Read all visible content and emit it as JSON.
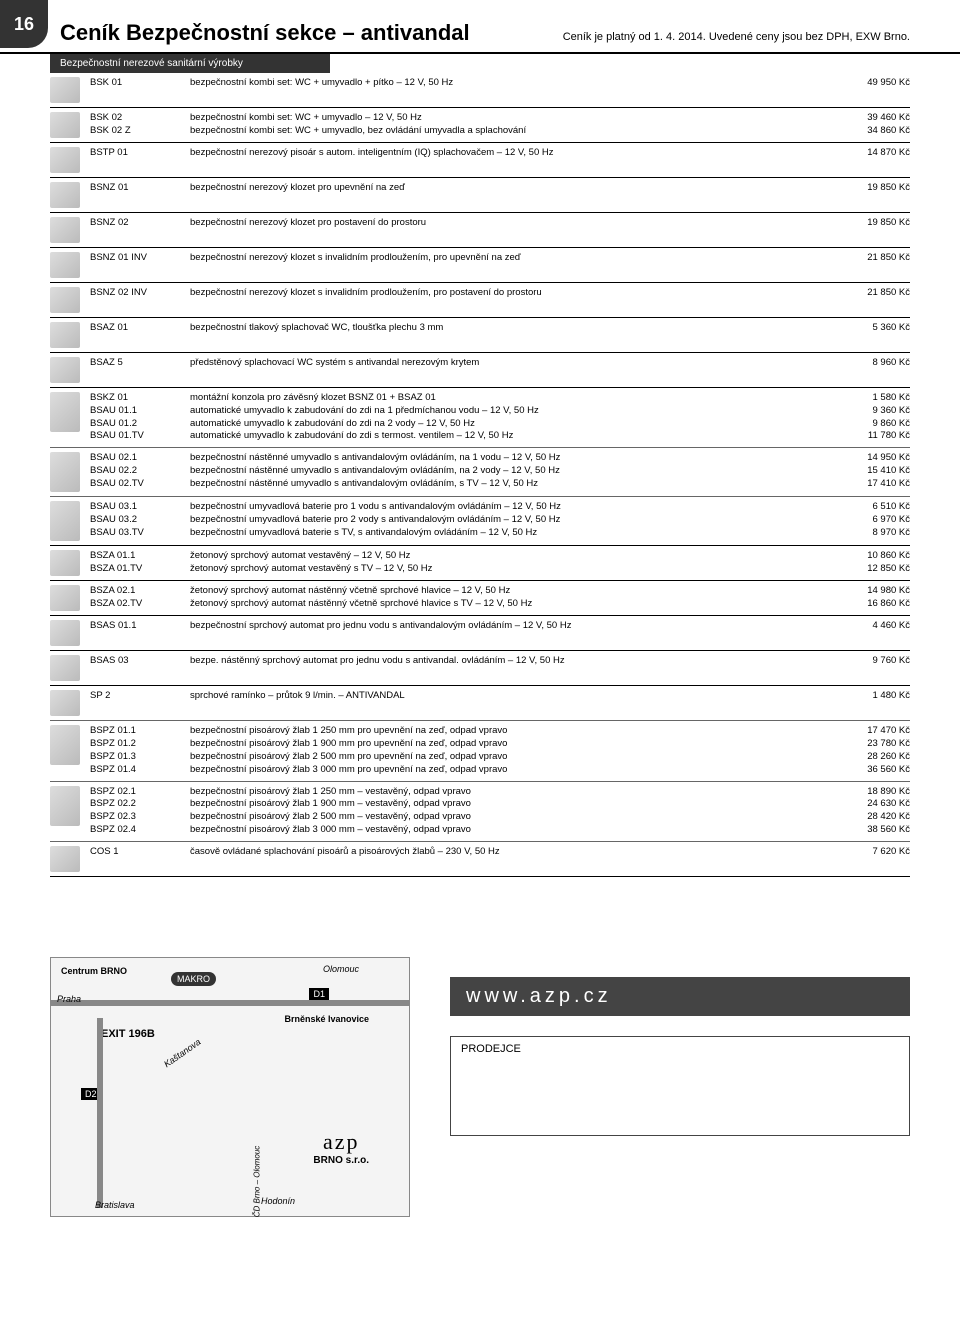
{
  "page_number": "16",
  "title": "Ceník Bezpečnostní sekce – antivandal",
  "subtitle": "Ceník je platný od 1. 4. 2014. Uvedené ceny jsou bez DPH, EXW Brno.",
  "band": "Bezpečnostní nerezové sanitární výrobky",
  "colors": {
    "header_bg": "#333333",
    "text": "#000000",
    "rule": "#000000"
  },
  "rows": [
    {
      "codes": [
        "BSK 01"
      ],
      "descs": [
        "bezpečnostní kombi set: WC + umyvadlo + pítko – 12 V, 50 Hz"
      ],
      "prices": [
        "49 950 Kč"
      ]
    },
    {
      "codes": [
        "BSK 02",
        "BSK 02 Z"
      ],
      "descs": [
        "bezpečnostní kombi set: WC + umyvadlo – 12 V, 50 Hz",
        "bezpečnostní kombi set: WC + umyvadlo, bez ovládání umyvadla a splachování"
      ],
      "prices": [
        "39 460 Kč",
        "34 860 Kč"
      ]
    },
    {
      "codes": [
        "BSTP 01"
      ],
      "descs": [
        "bezpečnostní nerezový pisoár s autom. inteligentním (IQ) splachovačem – 12 V, 50 Hz"
      ],
      "prices": [
        "14 870 Kč"
      ]
    },
    {
      "codes": [
        "BSNZ 01"
      ],
      "descs": [
        "bezpečnostní nerezový klozet pro upevnění na zeď"
      ],
      "prices": [
        "19 850 Kč"
      ]
    },
    {
      "codes": [
        "BSNZ 02"
      ],
      "descs": [
        "bezpečnostní nerezový klozet pro postavení do prostoru"
      ],
      "prices": [
        "19 850 Kč"
      ]
    },
    {
      "codes": [
        "BSNZ 01 INV"
      ],
      "descs": [
        "bezpečnostní nerezový klozet s invalidním prodloužením, pro upevnění na zeď"
      ],
      "prices": [
        "21 850 Kč"
      ]
    },
    {
      "codes": [
        "BSNZ 02 INV"
      ],
      "descs": [
        "bezpečnostní nerezový klozet s invalidním prodloužením, pro postavení do prostoru"
      ],
      "prices": [
        "21 850 Kč"
      ]
    },
    {
      "codes": [
        "BSAZ 01"
      ],
      "descs": [
        "bezpečnostní tlakový splachovač WC, tloušťka plechu 3 mm"
      ],
      "prices": [
        "5 360 Kč"
      ]
    },
    {
      "codes": [
        "BSAZ 5"
      ],
      "descs": [
        "předstěnový splachovací WC systém s antivandal nerezovým krytem"
      ],
      "prices": [
        "8 960 Kč"
      ]
    },
    {
      "codes": [
        "BSKZ 01",
        "BSAU 01.1",
        "BSAU 01.2",
        "BSAU 01.TV"
      ],
      "descs": [
        "montážní konzola pro závěsný klozet BSNZ 01 + BSAZ 01",
        "automatické umyvadlo k zabudování do zdi na 1 předmíchanou vodu – 12 V, 50 Hz",
        "automatické umyvadlo k zabudování do zdi na 2 vody – 12 V, 50 Hz",
        "automatické umyvadlo k zabudování do zdi s termost. ventilem – 12 V, 50 Hz"
      ],
      "prices": [
        "1 580 Kč",
        "9 360 Kč",
        "9 860 Kč",
        "11 780 Kč"
      ],
      "thin": true
    },
    {
      "codes": [
        "BSAU 02.1",
        "BSAU 02.2",
        "BSAU 02.TV"
      ],
      "descs": [
        "bezpečnostní nástěnné umyvadlo s antivandalovým ovládáním, na 1 vodu – 12 V, 50 Hz",
        "bezpečnostní nástěnné umyvadlo s antivandalovým ovládáním, na 2 vody – 12 V, 50 Hz",
        "bezpečnostní nástěnné umyvadlo s antivandalovým ovládáním, s TV – 12 V, 50 Hz"
      ],
      "prices": [
        "14 950 Kč",
        "15 410 Kč",
        "17 410 Kč"
      ],
      "thin": true
    },
    {
      "codes": [
        "BSAU 03.1",
        "BSAU 03.2",
        "BSAU 03.TV"
      ],
      "descs": [
        "bezpečnostní umyvadlová baterie pro 1 vodu s antivandalovým ovládáním – 12 V, 50 Hz",
        "bezpečnostní umyvadlová baterie pro 2 vody s antivandalovým ovládáním – 12 V, 50 Hz",
        "bezpečnostní umyvadlová baterie s TV, s antivandalovým ovládáním – 12 V, 50 Hz"
      ],
      "prices": [
        "6 510 Kč",
        "6 970 Kč",
        "8 970 Kč"
      ]
    },
    {
      "codes": [
        "BSZA 01.1",
        "BSZA 01.TV"
      ],
      "descs": [
        "žetonový sprchový automat vestavěný – 12 V, 50 Hz",
        "žetonový sprchový automat vestavěný s TV – 12 V, 50 Hz"
      ],
      "prices": [
        "10 860 Kč",
        "12 850 Kč"
      ]
    },
    {
      "codes": [
        "BSZA 02.1",
        "BSZA 02.TV"
      ],
      "descs": [
        "žetonový sprchový automat nástěnný včetně sprchové hlavice – 12 V, 50 Hz",
        "žetonový sprchový automat nástěnný včetně sprchové hlavice s TV – 12 V, 50 Hz"
      ],
      "prices": [
        "14 980 Kč",
        "16 860 Kč"
      ]
    },
    {
      "codes": [
        "BSAS 01.1"
      ],
      "descs": [
        "bezpečnostní sprchový automat pro jednu vodu s antivandalovým ovládáním – 12 V, 50 Hz"
      ],
      "prices": [
        "4 460 Kč"
      ]
    },
    {
      "codes": [
        "BSAS 03"
      ],
      "descs": [
        "bezpe. nástěnný sprchový automat pro jednu vodu s antivandal. ovládáním – 12 V, 50 Hz"
      ],
      "prices": [
        "9 760 Kč"
      ]
    },
    {
      "codes": [
        "SP 2"
      ],
      "descs": [
        "sprchové ramínko – průtok 9 l/min. – ANTIVANDAL"
      ],
      "prices": [
        "1 480 Kč"
      ],
      "thin": true
    },
    {
      "codes": [
        "BSPZ 01.1",
        "BSPZ 01.2",
        "BSPZ 01.3",
        "BSPZ 01.4"
      ],
      "descs": [
        "bezpečnostní pisoárový žlab 1 250 mm pro upevnění na zeď, odpad vpravo",
        "bezpečnostní pisoárový žlab 1 900 mm pro upevnění na zeď, odpad vpravo",
        "bezpečnostní pisoárový žlab 2 500 mm pro upevnění na zeď, odpad vpravo",
        "bezpečnostní pisoárový žlab 3 000 mm pro upevnění na zeď, odpad vpravo"
      ],
      "prices": [
        "17 470 Kč",
        "23 780 Kč",
        "28 260 Kč",
        "36 560 Kč"
      ],
      "thin": true
    },
    {
      "codes": [
        "BSPZ 02.1",
        "BSPZ 02.2",
        "BSPZ 02.3",
        "BSPZ 02.4"
      ],
      "descs": [
        "bezpečnostní pisoárový žlab 1 250 mm – vestavěný, odpad vpravo",
        "bezpečnostní pisoárový žlab 1 900 mm – vestavěný, odpad vpravo",
        "bezpečnostní pisoárový žlab 2 500 mm – vestavěný, odpad vpravo",
        "bezpečnostní pisoárový žlab 3 000 mm – vestavěný, odpad vpravo"
      ],
      "prices": [
        "18 890 Kč",
        "24 630 Kč",
        "28 420 Kč",
        "38 560 Kč"
      ],
      "thin": true
    },
    {
      "codes": [
        "COS 1"
      ],
      "descs": [
        "časově ovládané splachování pisoárů a pisoárových žlabů – 230 V, 50 Hz"
      ],
      "prices": [
        "7 620 Kč"
      ]
    }
  ],
  "map": {
    "labels": {
      "centrum": "Centrum BRNO",
      "makro": "MAKRO",
      "olomouc": "Olomouc",
      "d1": "D1",
      "d2": "D2",
      "praha": "Praha",
      "exit": "EXIT 196B",
      "ivanovice": "Brněnské Ivanovice",
      "hodonin": "Hodonín",
      "bratislava": "Bratislava",
      "kastanova": "Kaštanova",
      "cd": "ČD Brno – Olomouc",
      "azp": "azp",
      "brno_sro": "BRNO s.r.o."
    }
  },
  "www": "www.azp.cz",
  "seller_label": "PRODEJCE"
}
